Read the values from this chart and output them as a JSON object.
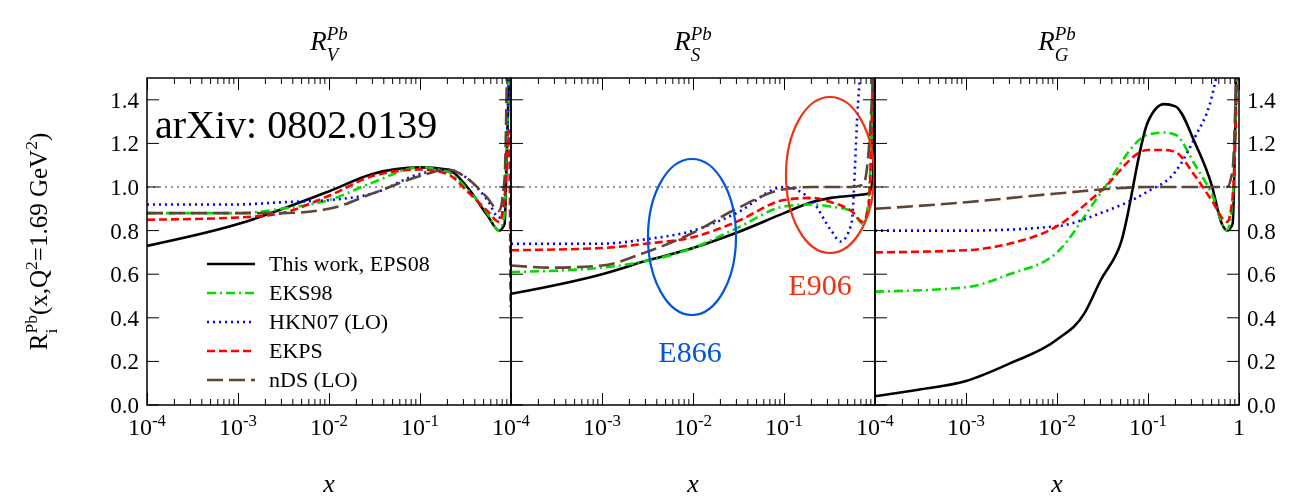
{
  "chart_data": [
    {
      "type": "line",
      "title": "R$_{V}$$^{Pb}$",
      "xlabel": "x",
      "ylabel": "R$_{i}$$^{Pb}$(x,Q$^{2}$=1.69 GeV$^{2}$)",
      "log": "x",
      "xlim": [
        0.0001,
        1
      ],
      "ylim": [
        0,
        1.5
      ],
      "xticks": [
        {
          "value": 0.0001,
          "label": "10$^{-4}$"
        },
        {
          "value": 0.001,
          "label": "10$^{-3}$"
        },
        {
          "value": 0.01,
          "label": "10$^{-2}$"
        },
        {
          "value": 0.1,
          "label": "10$^{-1}$"
        },
        {
          "value": 1,
          "label": null
        }
      ],
      "yticks": [
        {
          "value": 0,
          "label": "0.0"
        },
        {
          "value": 0.2,
          "label": "0.2"
        },
        {
          "value": 0.4,
          "label": "0.4"
        },
        {
          "value": 0.6,
          "label": "0.6"
        },
        {
          "value": 0.8,
          "label": "0.8"
        },
        {
          "value": 1,
          "label": "1.0"
        },
        {
          "value": 1.2,
          "label": "1.2"
        },
        {
          "value": 1.4,
          "label": "1.4"
        }
      ],
      "grid": false,
      "legend": "bottom right",
      "ref_lines": [
        {
          "axis": "y",
          "value": 1,
          "line_style": "dotted"
        }
      ],
      "annotations": [
        "arXiv: 0802.0139"
      ],
      "series": [
        {
          "name": "This work, EPS08",
          "color": "#000000",
          "line_style": "solid",
          "x": [
            0.0001,
            0.001,
            0.01,
            0.03,
            0.1,
            0.2,
            0.33,
            0.55,
            0.74,
            0.85,
            0.9,
            0.95
          ],
          "values": [
            0.73,
            0.83,
            0.98,
            1.06,
            1.09,
            1.08,
            1.0,
            0.87,
            0.8,
            0.83,
            1.16,
            1.5
          ]
        },
        {
          "name": "EKS98",
          "color": "#00dd00",
          "line_style": "dashdot",
          "x": [
            0.0001,
            0.001,
            0.003,
            0.01,
            0.03,
            0.1,
            0.2,
            0.33,
            0.55,
            0.74,
            0.85,
            0.9,
            0.95
          ],
          "values": [
            0.88,
            0.88,
            0.9,
            0.94,
            1.02,
            1.09,
            1.07,
            0.99,
            0.88,
            0.8,
            0.88,
            1.2,
            1.5
          ]
        },
        {
          "name": "HKN07 (LO)",
          "color": "#0000ff",
          "line_style": "dotted",
          "x": [
            0.0001,
            0.001,
            0.003,
            0.01,
            0.03,
            0.1,
            0.2,
            0.33,
            0.55,
            0.74,
            0.85,
            0.9,
            0.95
          ],
          "values": [
            0.92,
            0.92,
            0.93,
            0.94,
            0.97,
            1.06,
            1.08,
            1.04,
            0.94,
            0.86,
            0.94,
            1.2,
            1.5
          ]
        },
        {
          "name": "EKPS",
          "color": "#ff0000",
          "line_style": "dashed",
          "x": [
            0.0001,
            0.001,
            0.003,
            0.01,
            0.03,
            0.1,
            0.2,
            0.33,
            0.55,
            0.74,
            0.85,
            0.95,
            0.99
          ],
          "values": [
            0.85,
            0.86,
            0.88,
            0.96,
            1.05,
            1.08,
            1.06,
            0.98,
            0.89,
            0.84,
            0.95,
            1.26,
            0.45
          ]
        },
        {
          "name": "nDS (LO)",
          "color": "#5e4538",
          "line_style": "longdash",
          "x": [
            0.0001,
            0.001,
            0.003,
            0.01,
            0.03,
            0.1,
            0.2,
            0.33,
            0.55,
            0.74,
            0.85,
            0.9
          ],
          "values": [
            0.88,
            0.88,
            0.88,
            0.9,
            0.97,
            1.05,
            1.08,
            1.04,
            0.95,
            0.89,
            1.04,
            1.5
          ]
        }
      ]
    },
    {
      "type": "line",
      "title": "R$_{S}$$^{Pb}$",
      "xlabel": "x",
      "log": "x",
      "xlim": [
        0.0001,
        1
      ],
      "ylim": [
        0,
        1.5
      ],
      "tick_labels": "x",
      "xticks": [
        {
          "value": 0.0001,
          "label": "10$^{-4}$"
        },
        {
          "value": 0.001,
          "label": "10$^{-3}$"
        },
        {
          "value": 0.01,
          "label": "10$^{-2}$"
        },
        {
          "value": 0.1,
          "label": "10$^{-1}$"
        },
        {
          "value": 1,
          "label": null
        }
      ],
      "yticks": [
        0,
        0.2,
        0.4,
        0.6,
        0.8,
        1,
        1.2,
        1.4
      ],
      "grid": false,
      "ref_lines": [
        {
          "axis": "y",
          "value": 1,
          "line_style": "dotted"
        }
      ],
      "annotations": [
        "E866",
        "E906"
      ],
      "series": [
        {
          "color": "#000000",
          "line_style": "solid",
          "x": [
            0.0001,
            0.001,
            0.003,
            0.01,
            0.03,
            0.1,
            0.2,
            0.33,
            0.55,
            0.85,
            0.95,
            0.98
          ],
          "values": [
            0.51,
            0.6,
            0.66,
            0.72,
            0.79,
            0.88,
            0.93,
            0.95,
            0.96,
            0.97,
            1.04,
            1.5
          ]
        },
        {
          "color": "#00dd00",
          "line_style": "dashdot",
          "x": [
            0.0001,
            0.001,
            0.003,
            0.01,
            0.03,
            0.1,
            0.2,
            0.33,
            0.55,
            0.74,
            0.85,
            0.95
          ],
          "values": [
            0.61,
            0.63,
            0.66,
            0.72,
            0.81,
            0.91,
            0.92,
            0.91,
            0.89,
            0.83,
            0.94,
            1.5
          ]
        },
        {
          "color": "#0000ff",
          "line_style": "dotted",
          "x": [
            0.0001,
            0.001,
            0.003,
            0.01,
            0.03,
            0.1,
            0.2,
            0.33,
            0.42,
            0.55,
            0.65,
            0.68
          ],
          "values": [
            0.74,
            0.74,
            0.76,
            0.8,
            0.88,
            1.0,
            0.94,
            0.8,
            0.75,
            0.83,
            1.38,
            1.5
          ]
        },
        {
          "color": "#ff0000",
          "line_style": "dashed",
          "x": [
            0.0001,
            0.001,
            0.003,
            0.01,
            0.03,
            0.1,
            0.2,
            0.33,
            0.55,
            0.74,
            0.85,
            0.95
          ],
          "values": [
            0.71,
            0.72,
            0.74,
            0.77,
            0.84,
            0.94,
            0.95,
            0.93,
            0.89,
            0.84,
            0.91,
            1.5
          ]
        },
        {
          "color": "#5e4538",
          "line_style": "longdash",
          "x": [
            0.0001,
            0.0003,
            0.001,
            0.003,
            0.01,
            0.03,
            0.1,
            0.2,
            0.55,
            0.74,
            0.85,
            0.95
          ],
          "values": [
            0.64,
            0.63,
            0.64,
            0.7,
            0.79,
            0.9,
            0.99,
            1.0,
            1.0,
            1.01,
            1.16,
            1.5
          ]
        }
      ]
    },
    {
      "type": "line",
      "title": "R$_{G}$$^{Pb}$",
      "xlabel": "x",
      "log": "x",
      "xlim": [
        0.0001,
        1
      ],
      "ylim": [
        0,
        1.5
      ],
      "xticks": [
        {
          "value": 0.0001,
          "label": "10$^{-4}$"
        },
        {
          "value": 0.001,
          "label": "10$^{-3}$"
        },
        {
          "value": 0.01,
          "label": "10$^{-2}$"
        },
        {
          "value": 0.1,
          "label": "10$^{-1}$"
        },
        {
          "value": 1,
          "label": "1"
        }
      ],
      "yticks": [
        {
          "value": 0,
          "label": "0.0"
        },
        {
          "value": 0.2,
          "label": "0.2"
        },
        {
          "value": 0.4,
          "label": "0.4"
        },
        {
          "value": 0.6,
          "label": "0.6"
        },
        {
          "value": 0.8,
          "label": "0.8"
        },
        {
          "value": 1,
          "label": "1.0"
        },
        {
          "value": 1.2,
          "label": "1.2"
        },
        {
          "value": 1.4,
          "label": "1.4"
        }
      ],
      "grid": false,
      "ref_lines": [
        {
          "axis": "y",
          "value": 1,
          "line_style": "dotted"
        }
      ],
      "series": [
        {
          "color": "#000000",
          "line_style": "solid",
          "x": [
            0.0001,
            0.0003,
            0.001,
            0.003,
            0.01,
            0.02,
            0.03,
            0.05,
            0.1,
            0.15,
            0.2,
            0.33,
            0.5,
            0.65,
            0.74,
            0.85,
            0.93
          ],
          "values": [
            0.04,
            0.07,
            0.11,
            0.19,
            0.3,
            0.42,
            0.57,
            0.74,
            1.3,
            1.38,
            1.37,
            1.2,
            1.01,
            0.83,
            0.8,
            0.83,
            1.5
          ]
        },
        {
          "color": "#00dd00",
          "line_style": "dashdot",
          "x": [
            0.0001,
            0.001,
            0.003,
            0.01,
            0.03,
            0.1,
            0.15,
            0.2,
            0.33,
            0.5,
            0.74,
            0.85,
            0.95
          ],
          "values": [
            0.52,
            0.54,
            0.6,
            0.7,
            0.97,
            1.24,
            1.25,
            1.24,
            1.1,
            0.97,
            0.8,
            0.94,
            1.5
          ]
        },
        {
          "color": "#0000ff",
          "line_style": "dotted",
          "x": [
            0.0001,
            0.001,
            0.01,
            0.03,
            0.1,
            0.2,
            0.33,
            0.5,
            0.56
          ],
          "values": [
            0.8,
            0.8,
            0.82,
            0.88,
            0.98,
            1.07,
            1.23,
            1.41,
            1.5
          ]
        },
        {
          "color": "#ff0000",
          "line_style": "dashed",
          "x": [
            0.0001,
            0.001,
            0.003,
            0.01,
            0.03,
            0.1,
            0.15,
            0.2,
            0.33,
            0.5,
            0.74,
            0.85,
            0.95
          ],
          "values": [
            0.7,
            0.71,
            0.74,
            0.82,
            0.98,
            1.17,
            1.17,
            1.16,
            1.05,
            0.94,
            0.84,
            0.95,
            1.5
          ]
        },
        {
          "color": "#5e4538",
          "line_style": "longdash",
          "x": [
            0.0001,
            0.001,
            0.01,
            0.1,
            0.55,
            0.74,
            0.85,
            0.93
          ],
          "values": [
            0.9,
            0.93,
            0.97,
            1.0,
            1.0,
            1.0,
            1.08,
            1.5
          ]
        }
      ]
    }
  ]
}
